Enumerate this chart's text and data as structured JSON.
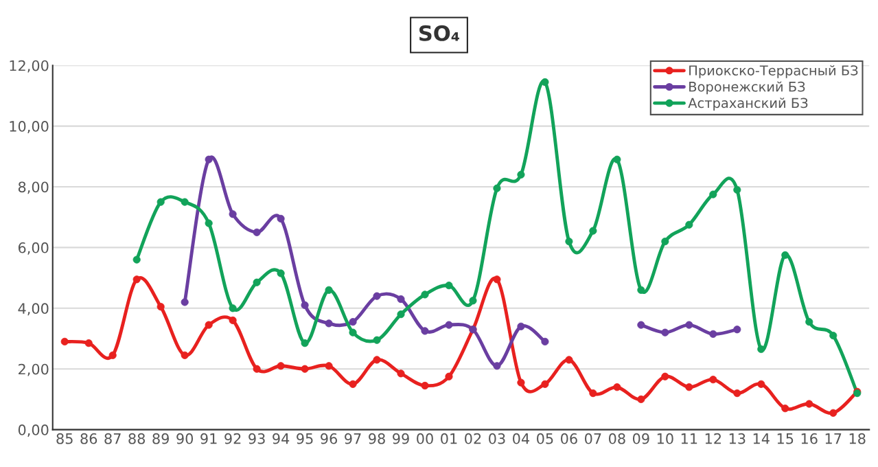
{
  "chart_data": {
    "type": "line",
    "title": "SO₄",
    "categories": [
      "85",
      "86",
      "87",
      "88",
      "89",
      "90",
      "91",
      "92",
      "93",
      "94",
      "95",
      "96",
      "97",
      "98",
      "99",
      "00",
      "01",
      "02",
      "03",
      "04",
      "05",
      "06",
      "07",
      "08",
      "09",
      "10",
      "11",
      "12",
      "13",
      "14",
      "15",
      "16",
      "17",
      "18"
    ],
    "series": [
      {
        "name": "Приокско-Террасный БЗ",
        "color": "#e8211f",
        "values": [
          2.9,
          2.85,
          2.45,
          4.95,
          4.05,
          2.45,
          3.45,
          3.6,
          2.0,
          2.1,
          2.0,
          2.1,
          1.5,
          2.3,
          1.85,
          1.45,
          1.75,
          3.3,
          4.95,
          1.55,
          1.5,
          2.3,
          1.2,
          1.4,
          1.0,
          1.75,
          1.4,
          1.65,
          1.2,
          1.5,
          0.7,
          0.85,
          0.55,
          1.25
        ]
      },
      {
        "name": "Воронежский БЗ",
        "color": "#6a3ea1",
        "values": [
          null,
          null,
          null,
          null,
          null,
          4.2,
          8.9,
          7.1,
          6.5,
          6.95,
          4.1,
          3.5,
          3.55,
          4.4,
          4.3,
          3.25,
          3.45,
          3.3,
          2.1,
          3.4,
          2.9,
          null,
          null,
          null,
          3.45,
          3.2,
          3.45,
          3.15,
          3.3,
          null,
          null,
          null,
          null,
          null
        ]
      },
      {
        "name": "Астраханский БЗ",
        "color": "#12a35a",
        "values": [
          null,
          null,
          null,
          5.6,
          7.5,
          7.5,
          6.8,
          4.0,
          4.85,
          5.15,
          2.85,
          4.6,
          3.2,
          2.95,
          3.8,
          4.45,
          4.75,
          4.25,
          7.95,
          8.4,
          11.45,
          6.2,
          6.55,
          8.9,
          4.6,
          6.2,
          6.75,
          7.75,
          7.9,
          2.65,
          5.75,
          3.55,
          3.1,
          1.2
        ]
      }
    ],
    "ylim": [
      0,
      12
    ],
    "yticks": [
      {
        "value": 0,
        "label": "0,00"
      },
      {
        "value": 2,
        "label": "2,00"
      },
      {
        "value": 4,
        "label": "4,00"
      },
      {
        "value": 6,
        "label": "6,00"
      },
      {
        "value": 8,
        "label": "8,00"
      },
      {
        "value": 10,
        "label": "10,00"
      },
      {
        "value": 12,
        "label": "12,00"
      }
    ],
    "grid": "y",
    "legend": "top right",
    "marker": "circle",
    "line_style": "solid"
  }
}
